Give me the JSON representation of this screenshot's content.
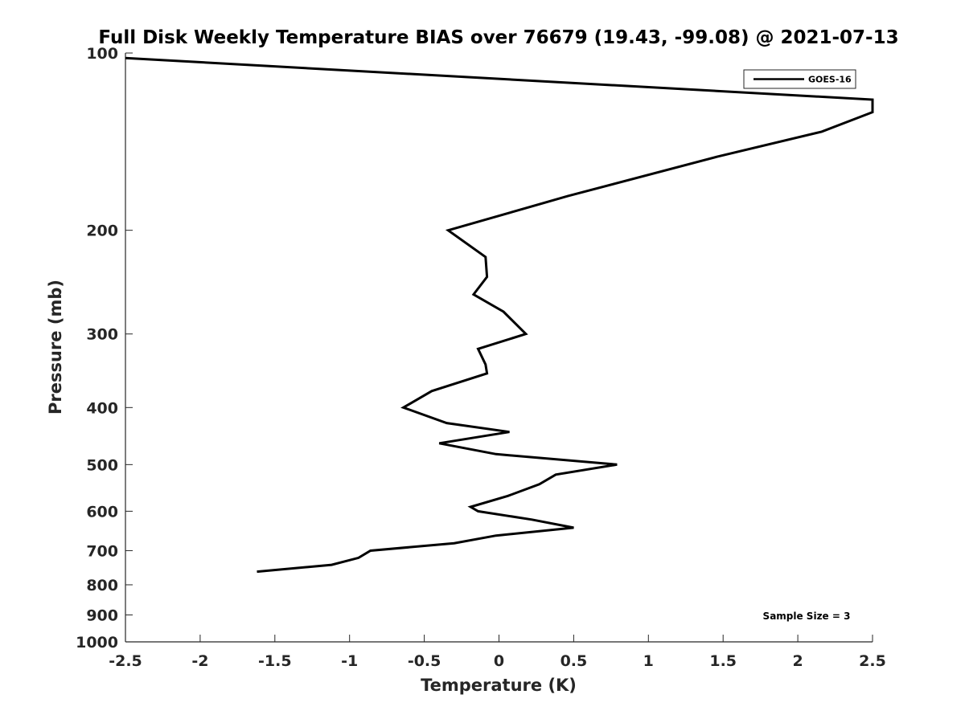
{
  "chart_data": {
    "type": "line",
    "title": "Full Disk Weekly Temperature BIAS over 76679 (19.43, -99.08) @ 2021-07-13",
    "xlabel": "Temperature (K)",
    "ylabel": "Pressure (mb)",
    "xlim": [
      -2.5,
      2.5
    ],
    "ylim": [
      100,
      1000
    ],
    "yscale": "log",
    "yreversed": true,
    "x_ticks": [
      -2.5,
      -2,
      -1.5,
      -1,
      -0.5,
      0,
      0.5,
      1,
      1.5,
      2,
      2.5
    ],
    "x_tick_labels": [
      "-2.5",
      "-2",
      "-1.5",
      "-1",
      "-0.5",
      "0",
      "0.5",
      "1",
      "1.5",
      "2",
      "2.5"
    ],
    "y_ticks": [
      100,
      200,
      300,
      400,
      500,
      600,
      700,
      800,
      900,
      1000
    ],
    "y_tick_labels": [
      "100",
      "200",
      "300",
      "400",
      "500",
      "600",
      "700",
      "800",
      "900",
      "1000"
    ],
    "grid": false,
    "legend_position": "top-right",
    "annotation": "Sample Size = 3",
    "series": [
      {
        "name": "GOES-16",
        "color": "#000000",
        "points": [
          {
            "x": -2.5,
            "y": 102
          },
          {
            "x": 2.5,
            "y": 120
          },
          {
            "x": 2.5,
            "y": 126
          },
          {
            "x": 2.16,
            "y": 136
          },
          {
            "x": 1.46,
            "y": 150
          },
          {
            "x": 0.46,
            "y": 175
          },
          {
            "x": -0.34,
            "y": 200
          },
          {
            "x": -0.09,
            "y": 222
          },
          {
            "x": -0.08,
            "y": 240
          },
          {
            "x": -0.17,
            "y": 257
          },
          {
            "x": 0.03,
            "y": 275
          },
          {
            "x": 0.18,
            "y": 300
          },
          {
            "x": -0.14,
            "y": 318
          },
          {
            "x": -0.09,
            "y": 338
          },
          {
            "x": -0.08,
            "y": 350
          },
          {
            "x": -0.45,
            "y": 375
          },
          {
            "x": -0.64,
            "y": 400
          },
          {
            "x": -0.35,
            "y": 425
          },
          {
            "x": 0.07,
            "y": 440
          },
          {
            "x": -0.4,
            "y": 460
          },
          {
            "x": -0.02,
            "y": 480
          },
          {
            "x": 0.79,
            "y": 500
          },
          {
            "x": 0.38,
            "y": 520
          },
          {
            "x": 0.27,
            "y": 540
          },
          {
            "x": 0.06,
            "y": 565
          },
          {
            "x": -0.19,
            "y": 590
          },
          {
            "x": -0.14,
            "y": 600
          },
          {
            "x": 0.22,
            "y": 620
          },
          {
            "x": 0.5,
            "y": 640
          },
          {
            "x": -0.02,
            "y": 660
          },
          {
            "x": -0.3,
            "y": 680
          },
          {
            "x": -0.86,
            "y": 700
          },
          {
            "x": -0.94,
            "y": 720
          },
          {
            "x": -1.12,
            "y": 740
          },
          {
            "x": -1.62,
            "y": 760
          }
        ]
      }
    ]
  }
}
